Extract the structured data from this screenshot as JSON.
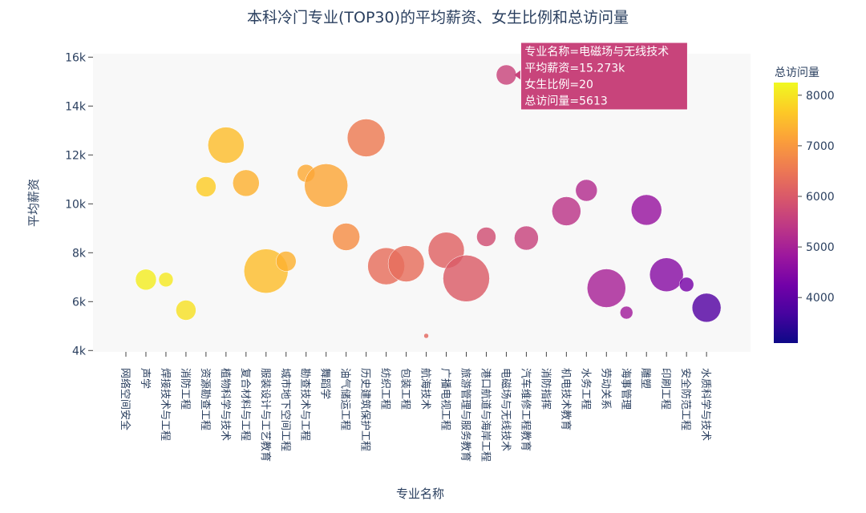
{
  "chart_data": {
    "type": "scatter",
    "title": "本科冷门专业(TOP30)的平均薪资、女生比例和总访问量",
    "xlabel": "专业名称",
    "ylabel": "平均薪资",
    "colorbar_title": "总访问量",
    "ylim": [
      3800,
      16300
    ],
    "yticks": [
      4000,
      6000,
      8000,
      10000,
      12000,
      14000,
      16000
    ],
    "ytick_labels": [
      "4k",
      "6k",
      "8k",
      "10k",
      "12k",
      "14k",
      "16k"
    ],
    "colorbar_range": [
      3100,
      8250
    ],
    "colorbar_ticks": [
      4000,
      5000,
      6000,
      7000,
      8000
    ],
    "colorbar_tick_labels": [
      "4000",
      "5000",
      "6000",
      "7000",
      "8000"
    ],
    "colors": [
      "#0d0887",
      "#46039f",
      "#7201a8",
      "#9c179e",
      "#bd3786",
      "#d8576b",
      "#ed7953",
      "#fb9f3a",
      "#fdca26",
      "#f0f921"
    ],
    "grid": false,
    "plot_background": "#f8f8f8",
    "categories": [
      "网络空间安全",
      "声学",
      "焊接技术与工程",
      "消防工程",
      "资源勘查工程",
      "植物科学与技术",
      "复合材料与工程",
      "服装设计与工艺教育",
      "城市地下空间工程",
      "勘查技术与工程",
      "舞蹈学",
      "油气储运工程",
      "历史建筑保护工程",
      "纺织工程",
      "包装工程",
      "航海技术",
      "广播电视工程",
      "旅游管理与服务教育",
      "港口航道与海岸工程",
      "电磁场与无线技术",
      "汽车维修工程教育",
      "消防指挥",
      "机电技术教育",
      "水务工程",
      "劳动关系",
      "海事管理",
      "雕塑",
      "印刷工程",
      "安全防范工程",
      "水质科学与技术"
    ],
    "points": [
      {
        "category": "声学",
        "y": 6900,
        "size": 26,
        "visits": 8100
      },
      {
        "category": "焊接技术与工程",
        "y": 6900,
        "size": 18,
        "visits": 8050
      },
      {
        "category": "消防工程",
        "y": 5650,
        "size": 25,
        "visits": 7950
      },
      {
        "category": "资源勘查工程",
        "y": 10700,
        "size": 25,
        "visits": 7700
      },
      {
        "category": "植物科学与技术",
        "y": 12400,
        "size": 45,
        "visits": 7500
      },
      {
        "category": "复合材料与工程",
        "y": 10850,
        "size": 33,
        "visits": 7350
      },
      {
        "category": "服装设计与工艺教育",
        "y": 7250,
        "size": 55,
        "visits": 7500
      },
      {
        "category": "城市地下空间工程",
        "y": 7650,
        "size": 25,
        "visits": 7350
      },
      {
        "category": "勘查技术与工程",
        "y": 11250,
        "size": 22,
        "visits": 7250
      },
      {
        "category": "舞蹈学",
        "y": 10750,
        "size": 54,
        "visits": 7200
      },
      {
        "category": "油气储运工程",
        "y": 8650,
        "size": 34,
        "visits": 6850
      },
      {
        "category": "历史建筑保护工程",
        "y": 12700,
        "size": 47,
        "visits": 6550
      },
      {
        "category": "纺织工程",
        "y": 7450,
        "size": 46,
        "visits": 6350
      },
      {
        "category": "包装工程",
        "y": 7550,
        "size": 45,
        "visits": 6350
      },
      {
        "category": "航海技术",
        "y": 4600,
        "size": 6,
        "visits": 6250
      },
      {
        "category": "广播电视工程",
        "y": 8100,
        "size": 45,
        "visits": 6150
      },
      {
        "category": "旅游管理与服务教育",
        "y": 6950,
        "size": 58,
        "visits": 6050
      },
      {
        "category": "港口航道与海岸工程",
        "y": 8650,
        "size": 24,
        "visits": 5800
      },
      {
        "category": "电磁场与无线技术",
        "y": 15273,
        "size": 25,
        "visits": 5613
      },
      {
        "category": "汽车维修工程教育",
        "y": 8600,
        "size": 30,
        "visits": 5600
      },
      {
        "category": "机电技术教育",
        "y": 9700,
        "size": 36,
        "visits": 5350
      },
      {
        "category": "水务工程",
        "y": 10550,
        "size": 27,
        "visits": 5200
      },
      {
        "category": "劳动关系",
        "y": 6550,
        "size": 48,
        "visits": 5000
      },
      {
        "category": "海事管理",
        "y": 5550,
        "size": 16,
        "visits": 4900
      },
      {
        "category": "雕塑",
        "y": 9750,
        "size": 38,
        "visits": 4750
      },
      {
        "category": "印刷工程",
        "y": 7100,
        "size": 42,
        "visits": 4550
      },
      {
        "category": "安全防范工程",
        "y": 6700,
        "size": 18,
        "visits": 4300
      },
      {
        "category": "水质科学与技术",
        "y": 5750,
        "size": 36,
        "visits": 3850
      }
    ],
    "tooltip": {
      "point_category": "电磁场与无线技术",
      "lines": [
        "专业名称=电磁场与无线技术",
        "平均薪资=15.273k",
        "女生比例=20",
        "总访问量=5613"
      ]
    }
  }
}
